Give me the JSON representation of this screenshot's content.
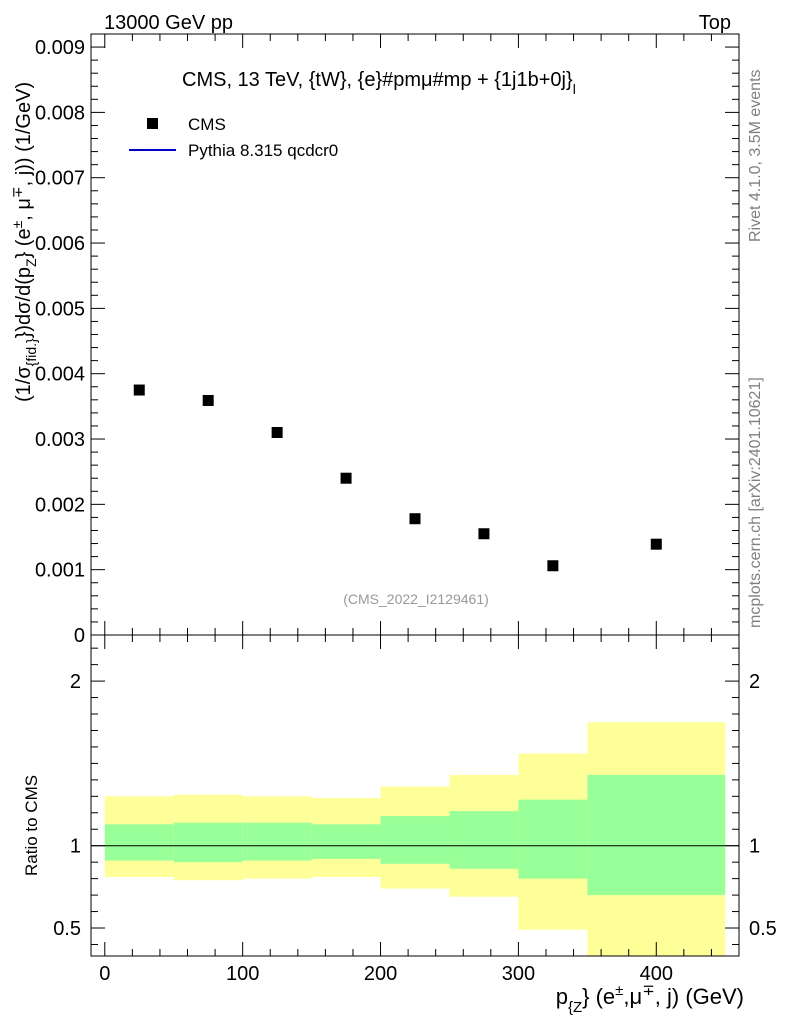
{
  "header": {
    "left": "13000 GeV pp",
    "right": "Top"
  },
  "side_labels": {
    "rivet": "Rivet 4.1.0,  3.5M events",
    "mcplots": "mcplots.cern.ch [arXiv:2401.10621]"
  },
  "colors": {
    "band_inner": "#99ff99",
    "band_outer": "#ffff99",
    "mc_line": "#0000cc",
    "data_marker": "#000000",
    "watermark": "#999999"
  },
  "chart_data": [
    {
      "type": "scatter",
      "title": "CMS, 13 TeV, {tW}, {e}#pmμ#mp + {1j1b+0j}",
      "title_subscript": "l",
      "ylabel": "(1/σ{fid.}) dσ/d(pZ} (e±, μ∓, j)) (1/GeV)",
      "ylabel_parts": {
        "a": "(1/",
        "sigma": "σ",
        "sub_fid": "{fid.}",
        "b": "})dσ/d(p",
        "sub_z": "Z",
        "c": "} (e",
        "pm": "±",
        "d": ", μ",
        "mp": "∓",
        "e": ", j)) (1/GeV)"
      },
      "watermark": "(CMS_2022_I2129461)",
      "legend": [
        "CMS",
        "Pythia 8.315 qcdcr0"
      ],
      "legend_position": "top-left",
      "xlim": [
        -10,
        460
      ],
      "ylim": [
        0,
        0.0092
      ],
      "yticks": [
        0,
        0.001,
        0.002,
        0.003,
        0.004,
        0.005,
        0.006,
        0.007,
        0.008,
        0.009
      ],
      "ytick_labels": [
        "0",
        "0.001",
        "0.002",
        "0.003",
        "0.004",
        "0.005",
        "0.006",
        "0.007",
        "0.008",
        "0.009"
      ],
      "series": [
        {
          "name": "CMS",
          "x": [
            25,
            75,
            125,
            175,
            225,
            275,
            325,
            400
          ],
          "y": [
            0.00375,
            0.00359,
            0.0031,
            0.0024,
            0.00178,
            0.00155,
            0.00106,
            0.00139
          ]
        },
        {
          "name": "Pythia 8.315 qcdcr0",
          "x": [],
          "y": []
        }
      ]
    },
    {
      "type": "area",
      "ylabel": "Ratio to CMS",
      "xlabel_parts": {
        "p": "p",
        "sub": "{Z",
        "rest": "} (e",
        "pm": "±",
        "mid": ",μ",
        "mp": "∓",
        "end": ", j) (GeV)"
      },
      "xlim": [
        -10,
        460
      ],
      "ylim": [
        0.33,
        2.28
      ],
      "yticks": [
        0.5,
        1,
        2
      ],
      "ytick_labels": [
        "0.5",
        "1",
        "2"
      ],
      "xticks": [
        0,
        100,
        200,
        300,
        400
      ],
      "xtick_labels": [
        "0",
        "100",
        "200",
        "300",
        "400"
      ],
      "bins": [
        {
          "lo": 0,
          "hi": 50,
          "inner": [
            0.91,
            1.13
          ],
          "outer": [
            0.81,
            1.3
          ]
        },
        {
          "lo": 50,
          "hi": 100,
          "inner": [
            0.9,
            1.14
          ],
          "outer": [
            0.79,
            1.31
          ]
        },
        {
          "lo": 100,
          "hi": 150,
          "inner": [
            0.91,
            1.14
          ],
          "outer": [
            0.8,
            1.3
          ]
        },
        {
          "lo": 150,
          "hi": 200,
          "inner": [
            0.92,
            1.13
          ],
          "outer": [
            0.81,
            1.29
          ]
        },
        {
          "lo": 200,
          "hi": 250,
          "inner": [
            0.89,
            1.18
          ],
          "outer": [
            0.74,
            1.36
          ]
        },
        {
          "lo": 250,
          "hi": 300,
          "inner": [
            0.86,
            1.21
          ],
          "outer": [
            0.69,
            1.43
          ]
        },
        {
          "lo": 300,
          "hi": 350,
          "inner": [
            0.8,
            1.28
          ],
          "outer": [
            0.49,
            1.56
          ]
        },
        {
          "lo": 350,
          "hi": 450,
          "inner": [
            0.7,
            1.43
          ],
          "outer": [
            0.33,
            1.75
          ]
        }
      ],
      "reference_line": 1
    }
  ]
}
